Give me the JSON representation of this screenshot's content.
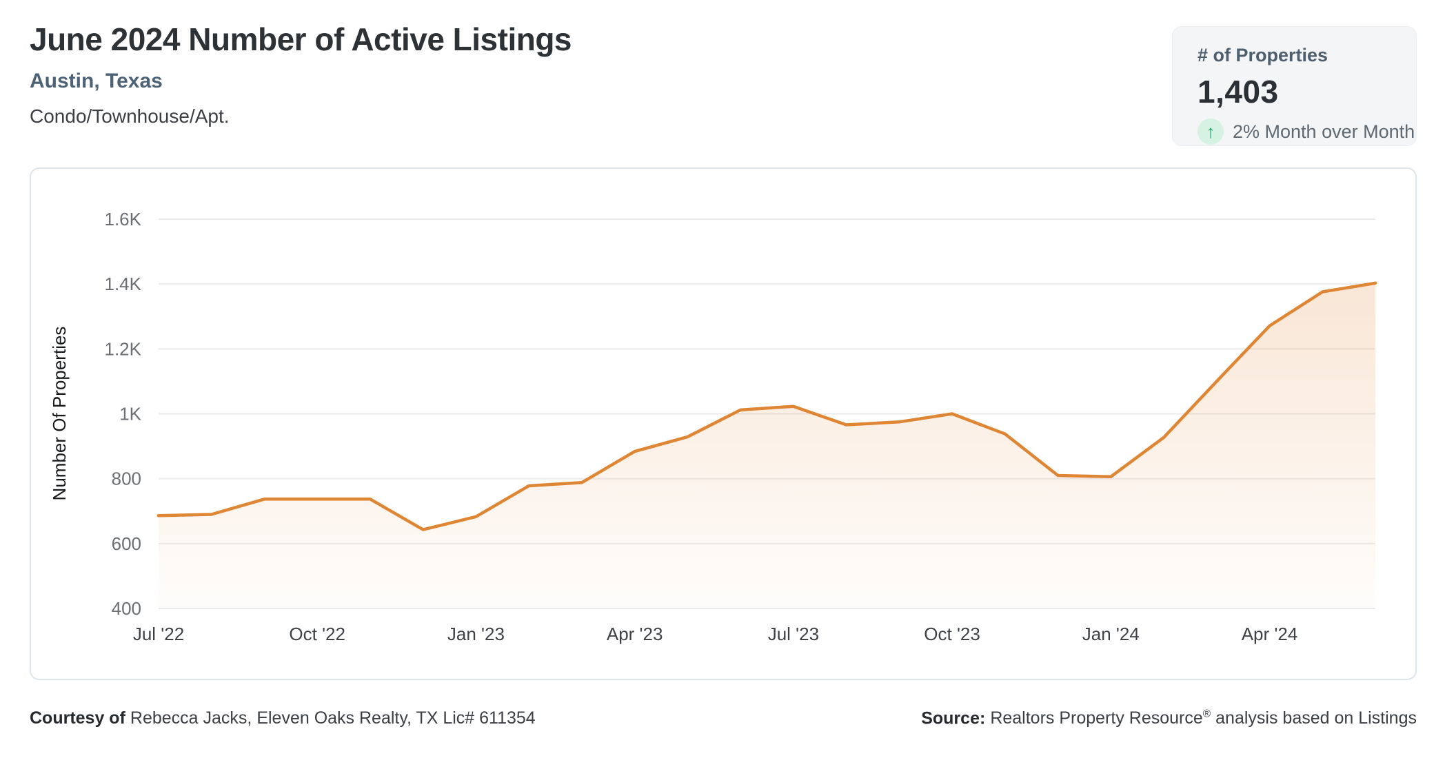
{
  "header": {
    "title": "June 2024 Number of Active Listings",
    "subtitle": "Austin, Texas",
    "property_type": "Condo/Townhouse/Apt."
  },
  "stats_card": {
    "label": "# of Properties",
    "value": "1,403",
    "trend_icon": "arrow-up-icon",
    "trend_arrow_glyph": "↑",
    "trend_text": "2% Month over Month",
    "trend_arrow_color": "#26a167",
    "trend_circle_color": "#d5f2e2"
  },
  "chart_data": {
    "type": "area",
    "title": "",
    "ylabel": "Number Of Properties",
    "xlabel": "",
    "grid": true,
    "legend": false,
    "ylim": [
      400,
      1600
    ],
    "months": [
      "Jul '22",
      "Aug '22",
      "Sep '22",
      "Oct '22",
      "Nov '22",
      "Dec '22",
      "Jan '23",
      "Feb '23",
      "Mar '23",
      "Apr '23",
      "May '23",
      "Jun '23",
      "Jul '23",
      "Aug '23",
      "Sep '23",
      "Oct '23",
      "Nov '23",
      "Dec '23",
      "Jan '24",
      "Feb '24",
      "Mar '24",
      "Apr '24",
      "May '24",
      "Jun '24"
    ],
    "values": [
      686,
      690,
      737,
      737,
      737,
      643,
      683,
      778,
      788,
      884,
      929,
      1012,
      1023,
      966,
      975,
      1000,
      938,
      810,
      806,
      927,
      1100,
      1271,
      1376,
      1403
    ],
    "x_tick_indices": [
      0,
      3,
      6,
      9,
      12,
      15,
      18,
      21
    ],
    "x_tick_labels": [
      "Jul '22",
      "Oct '22",
      "Jan '23",
      "Apr '23",
      "Jul '23",
      "Oct '23",
      "Jan '24",
      "Apr '24"
    ],
    "y_tick_values": [
      400,
      600,
      800,
      1000,
      1200,
      1400,
      1600
    ],
    "y_tick_labels": [
      "400",
      "600",
      "800",
      "1K",
      "1.2K",
      "1.4K",
      "1.6K"
    ],
    "line_color": "#df8634",
    "fill_color": "#e08635",
    "grid_color": "#ebebeb",
    "y_tick_color": "#6b6f73",
    "x_tick_color": "#3e4246",
    "axis_title_color": "#17191b"
  },
  "footer": {
    "courtesy_bold": "Courtesy of",
    "courtesy_rest": "Rebecca Jacks, Eleven Oaks Realty, TX Lic# 611354",
    "source_bold": "Source:",
    "source_pre": "Realtors Property Resource",
    "source_reg": "®",
    "source_post": " analysis based on Listings"
  }
}
